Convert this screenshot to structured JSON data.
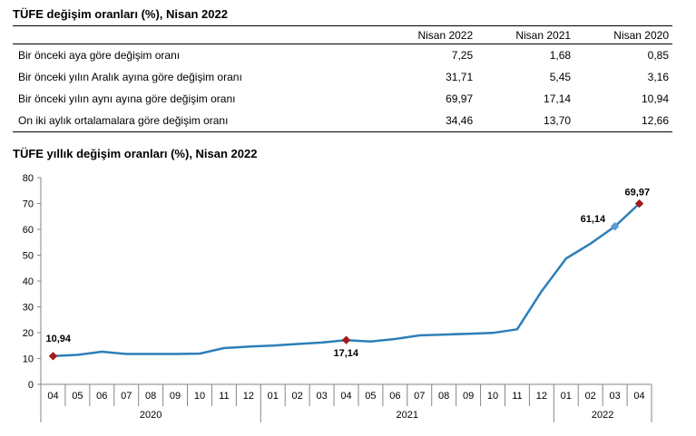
{
  "table": {
    "title": "TÜFE değişim oranları (%), Nisan 2022",
    "columns": [
      "",
      "Nisan 2022",
      "Nisan 2021",
      "Nisan 2020"
    ],
    "rows": [
      [
        "Bir önceki aya göre değişim oranı",
        "7,25",
        "1,68",
        "0,85"
      ],
      [
        "Bir önceki yılın Aralık ayına göre değişim oranı",
        "31,71",
        "5,45",
        "3,16"
      ],
      [
        "Bir önceki yılın aynı ayına göre değişim oranı",
        "69,97",
        "17,14",
        "10,94"
      ],
      [
        "On iki aylık ortalamalara göre değişim oranı",
        "34,46",
        "13,70",
        "12,66"
      ]
    ]
  },
  "chart_data": {
    "type": "line",
    "title": "TÜFE yıllık değişim oranları (%), Nisan 2022",
    "xlabel": "",
    "ylabel": "",
    "ylim": [
      0,
      80
    ],
    "yticks": [
      0,
      10,
      20,
      30,
      40,
      50,
      60,
      70,
      80
    ],
    "grid": false,
    "categories": [
      "04",
      "05",
      "06",
      "07",
      "08",
      "09",
      "10",
      "11",
      "12",
      "01",
      "02",
      "03",
      "04",
      "05",
      "06",
      "07",
      "08",
      "09",
      "10",
      "11",
      "12",
      "01",
      "02",
      "03",
      "04"
    ],
    "year_groups": [
      {
        "label": "2020",
        "start": 0,
        "end": 8
      },
      {
        "label": "2021",
        "start": 9,
        "end": 20
      },
      {
        "label": "2022",
        "start": 21,
        "end": 24
      }
    ],
    "series": [
      {
        "values": [
          10.94,
          11.39,
          12.62,
          11.76,
          11.77,
          11.75,
          11.89,
          14.03,
          14.6,
          14.97,
          15.61,
          16.19,
          17.14,
          16.59,
          17.53,
          18.95,
          19.25,
          19.58,
          19.89,
          21.31,
          36.08,
          48.69,
          54.44,
          61.14,
          69.97
        ],
        "color": "#2e7fb8"
      }
    ],
    "highlights": [
      {
        "index": 0,
        "label": "10,94",
        "color": "#a01c1c"
      },
      {
        "index": 12,
        "label": "17,14",
        "color": "#a01c1c"
      },
      {
        "index": 23,
        "label": "61,14",
        "color": "#5b9bd5"
      },
      {
        "index": 24,
        "label": "69,97",
        "color": "#a01c1c"
      }
    ]
  }
}
